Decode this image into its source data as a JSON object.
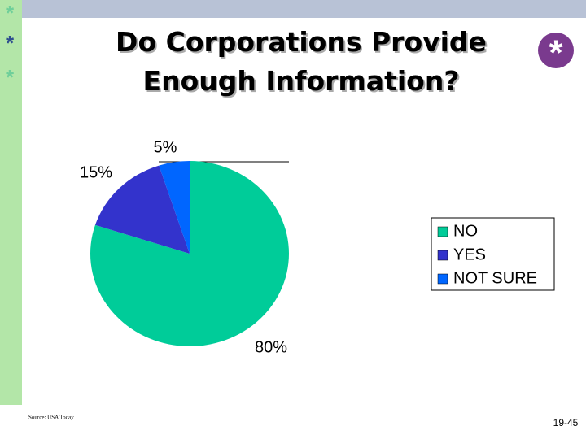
{
  "chart_data": {
    "type": "pie",
    "title": "Do Corporations Provide Enough Information?",
    "categories": [
      "NO",
      "YES",
      "NOT SURE"
    ],
    "values": [
      80,
      15,
      5
    ],
    "value_labels": [
      "80%",
      "15%",
      "5%"
    ],
    "colors": [
      "#00cc99",
      "#3333cc",
      "#0066ff"
    ],
    "legend": "right"
  },
  "bullets": [
    "*",
    "*",
    "*"
  ],
  "logo": "*",
  "source": "Source: USA Today",
  "page_number": "19-45"
}
